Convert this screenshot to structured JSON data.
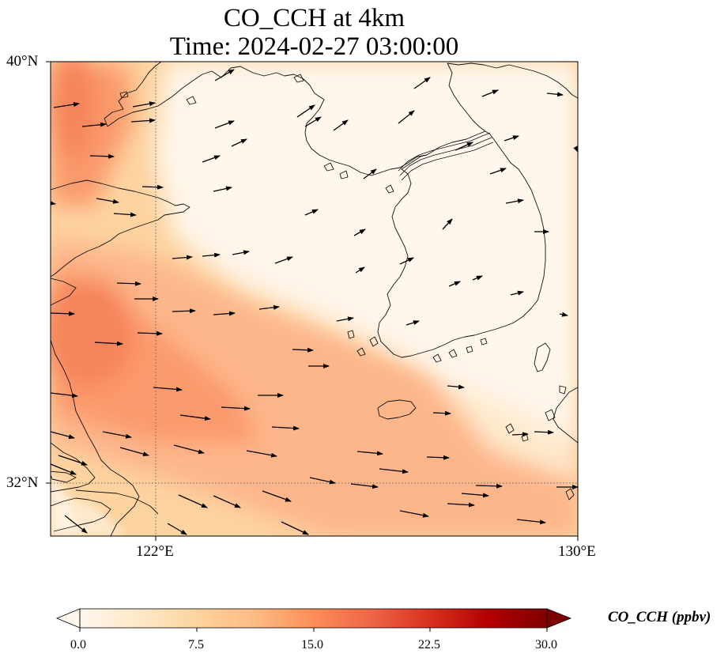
{
  "title_line1": "CO_CCH at 4km",
  "title_line2": "Time: 2024-02-27 03:00:00",
  "axes": {
    "lat_ticks": [
      "40°N",
      "32°N"
    ],
    "lon_ticks": [
      "122°E",
      "130°E"
    ],
    "lon_range": [
      120,
      130
    ],
    "lat_range": [
      31,
      40
    ]
  },
  "colorbar": {
    "label": "CO_CCH (ppbv)",
    "min": 0.0,
    "max": 30.0,
    "ticks": [
      "0.0",
      "7.5",
      "15.0",
      "22.5",
      "30.0"
    ],
    "colormap": "OrRd",
    "extend": "both",
    "stops": [
      "#fff7ec",
      "#fee8c8",
      "#fdd49e",
      "#fdbb84",
      "#fc8d59",
      "#ef6548",
      "#d7301f",
      "#b30000",
      "#7f0000"
    ]
  },
  "gridlines": {
    "style": "dotted",
    "color": "#555555"
  },
  "features": [
    "coastlines",
    "wind-vectors",
    "CO concentration field"
  ]
}
